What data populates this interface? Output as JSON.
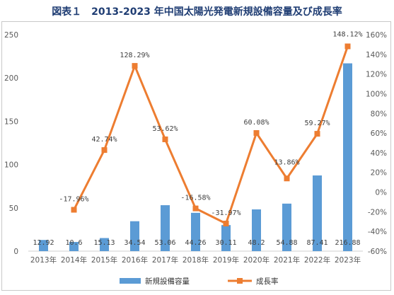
{
  "title": "図表１　2013-2023 年中国太陽光発電新規設備容量及び成長率",
  "chart_data": {
    "type": "bar",
    "categories": [
      "2013年",
      "2014年",
      "2015年",
      "2016年",
      "2017年",
      "2018年",
      "2019年",
      "2020年",
      "2021年",
      "2022年",
      "2023年"
    ],
    "series": [
      {
        "name": "新規設備容量",
        "type": "bar",
        "axis": "left",
        "color": "#5b9bd5",
        "values": [
          12.92,
          10.6,
          15.13,
          34.54,
          53.06,
          44.26,
          30.11,
          48.2,
          54.88,
          87.41,
          216.88
        ],
        "labels": [
          "12.92",
          "10.6",
          "15.13",
          "34.54",
          "53.06",
          "44.26",
          "30.11",
          "48.2",
          "54.88",
          "87.41",
          "216.88"
        ]
      },
      {
        "name": "成長率",
        "type": "line",
        "axis": "right",
        "color": "#ed7d31",
        "values": [
          null,
          -17.96,
          42.74,
          128.29,
          53.62,
          -16.58,
          -31.97,
          60.08,
          13.86,
          59.27,
          148.12
        ],
        "labels": [
          "",
          "-17.96%",
          "42.74%",
          "128.29%",
          "53.62%",
          "-16.58%",
          "-31.97%",
          "60.08%",
          "13.86%",
          "59.27%",
          "148.12%"
        ]
      }
    ],
    "left_axis": {
      "ylim": [
        0,
        250
      ],
      "ticks": [
        "0",
        "50",
        "100",
        "150",
        "200",
        "250"
      ]
    },
    "right_axis": {
      "ylim": [
        -60,
        160
      ],
      "ticks": [
        "-60%",
        "-40%",
        "-20%",
        "0%",
        "20%",
        "40%",
        "60%",
        "80%",
        "100%",
        "120%",
        "140%",
        "160%"
      ]
    },
    "grid": false,
    "legend": "bottom"
  }
}
